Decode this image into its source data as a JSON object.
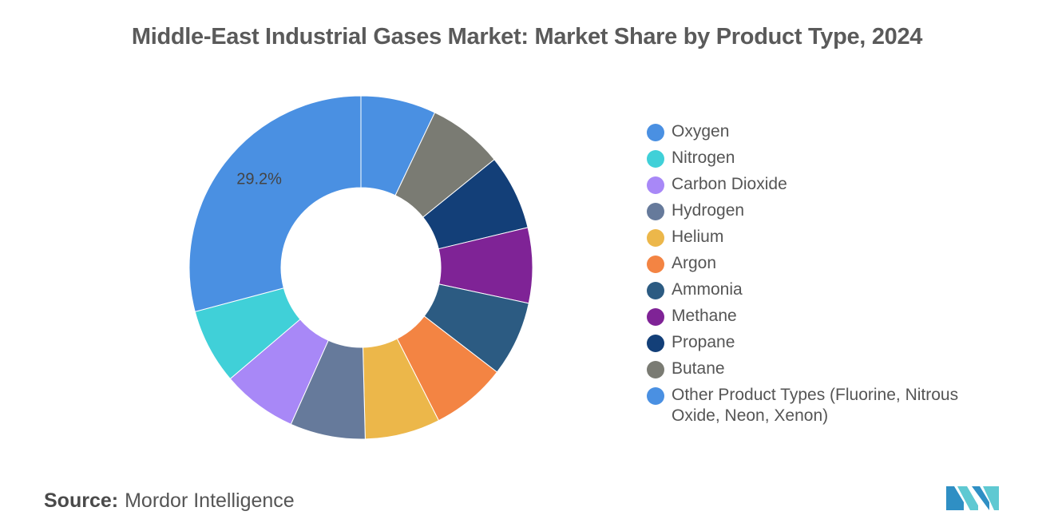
{
  "chart_data": {
    "type": "pie",
    "donut": true,
    "title": "Middle-East Industrial Gases Market: Market Share by Product Type, 2024",
    "slices": [
      {
        "label": "Oxygen",
        "value": 29.2,
        "color": "#4a90e2"
      },
      {
        "label": "Nitrogen",
        "value": 7.1,
        "color": "#40d0d8"
      },
      {
        "label": "Carbon Dioxide",
        "value": 7.1,
        "color": "#a888f7"
      },
      {
        "label": "Hydrogen",
        "value": 7.1,
        "color": "#667a9b"
      },
      {
        "label": "Helium",
        "value": 7.1,
        "color": "#ecb74a"
      },
      {
        "label": "Argon",
        "value": 7.1,
        "color": "#f38443"
      },
      {
        "label": "Ammonia",
        "value": 7.1,
        "color": "#2c5b82"
      },
      {
        "label": "Methane",
        "value": 7.1,
        "color": "#7f2396"
      },
      {
        "label": "Propane",
        "value": 7.1,
        "color": "#133f78"
      },
      {
        "label": "Butane",
        "value": 7.1,
        "color": "#7a7b73"
      },
      {
        "label": "Other Product Types (Fluorine, Nitrous Oxide, Neon, Xenon)",
        "value": 7.1,
        "color": "#4a90e2"
      }
    ],
    "data_labels": [
      {
        "slice": "Oxygen",
        "text": "29.2%"
      }
    ],
    "legend_position": "right"
  },
  "source": {
    "label": "Source:",
    "value": "Mordor Intelligence"
  },
  "logo": {
    "name": "mordor-intelligence-logo",
    "colors": [
      "#2f8fc4",
      "#5fc9d2"
    ]
  }
}
